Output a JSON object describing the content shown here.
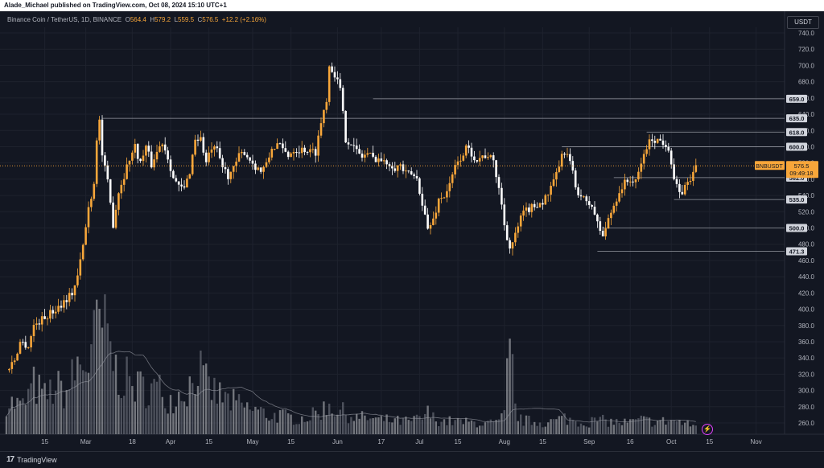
{
  "header": {
    "publisher": "Alade_Michael published on TradingView.com, Oct 08, 2024 15:10 UTC+1"
  },
  "legend": {
    "symbol": "Binance Coin / TetherUS, 1D, BINANCE",
    "open_label": "O",
    "open": "564.4",
    "high_label": "H",
    "high": "579.2",
    "low_label": "L",
    "low": "559.5",
    "close_label": "C",
    "close": "576.5",
    "change": "+12.2 (+2.16%)"
  },
  "currency": "USDT",
  "footer": {
    "brand": "TradingView",
    "logo": "17"
  },
  "colors": {
    "bull": "#f7a63a",
    "bear": "#ffffff",
    "bg": "#131722",
    "grid": "#1e222d",
    "price_tag": "#f7a63a"
  },
  "chart_data": {
    "type": "candlestick",
    "y_min": 250,
    "y_max": 740,
    "y_ticks": [
      260,
      280,
      300,
      320,
      340,
      360,
      380,
      400,
      420,
      440,
      460,
      480,
      500,
      520,
      540,
      560,
      580,
      600,
      620,
      640,
      660,
      680,
      700,
      720,
      740
    ],
    "x_labels": [
      {
        "label": "15",
        "day": 14
      },
      {
        "label": "Mar",
        "day": 29
      },
      {
        "label": "18",
        "day": 46
      },
      {
        "label": "Apr",
        "day": 60
      },
      {
        "label": "15",
        "day": 74
      },
      {
        "label": "May",
        "day": 90
      },
      {
        "label": "15",
        "day": 104
      },
      {
        "label": "Jun",
        "day": 121
      },
      {
        "label": "17",
        "day": 137
      },
      {
        "label": "Jul",
        "day": 151
      },
      {
        "label": "15",
        "day": 165
      },
      {
        "label": "Aug",
        "day": 182
      },
      {
        "label": "15",
        "day": 196
      },
      {
        "label": "Sep",
        "day": 213
      },
      {
        "label": "16",
        "day": 228
      },
      {
        "label": "Oct",
        "day": 243
      },
      {
        "label": "15",
        "day": 257
      },
      {
        "label": "Nov",
        "day": 274
      }
    ],
    "levels": [
      {
        "price": 659.0,
        "label": "659.0",
        "from_day": 134
      },
      {
        "price": 635.0,
        "label": "635.0",
        "from_day": 35
      },
      {
        "price": 618.0,
        "label": "618.0",
        "from_day": 234
      },
      {
        "price": 600.0,
        "label": "600.0",
        "from_day": 203
      },
      {
        "price": 562.0,
        "label": "562.0",
        "from_day": 222
      },
      {
        "price": 535.0,
        "label": "535.0",
        "from_day": 244
      },
      {
        "price": 500.0,
        "label": "500.0",
        "from_day": 218
      },
      {
        "price": 471.3,
        "label": "471.3",
        "from_day": 216
      }
    ],
    "last_price": {
      "symbol": "BNBUSDT",
      "price": 576.5,
      "label": "576.5",
      "countdown": "09:49:18"
    },
    "anchors": [
      [
        0,
        325
      ],
      [
        3,
        338
      ],
      [
        5,
        360
      ],
      [
        8,
        355
      ],
      [
        10,
        380
      ],
      [
        14,
        390
      ],
      [
        18,
        400
      ],
      [
        21,
        410
      ],
      [
        24,
        420
      ],
      [
        26,
        440
      ],
      [
        28,
        478
      ],
      [
        30,
        525
      ],
      [
        32,
        555
      ],
      [
        33,
        612
      ],
      [
        34,
        632
      ],
      [
        35,
        590
      ],
      [
        37,
        555
      ],
      [
        39,
        505
      ],
      [
        41,
        545
      ],
      [
        43,
        565
      ],
      [
        45,
        586
      ],
      [
        47,
        600
      ],
      [
        49,
        580
      ],
      [
        51,
        600
      ],
      [
        53,
        578
      ],
      [
        55,
        594
      ],
      [
        57,
        606
      ],
      [
        59,
        588
      ],
      [
        61,
        562
      ],
      [
        63,
        550
      ],
      [
        65,
        548
      ],
      [
        67,
        570
      ],
      [
        69,
        610
      ],
      [
        71,
        610
      ],
      [
        73,
        580
      ],
      [
        75,
        598
      ],
      [
        77,
        594
      ],
      [
        79,
        575
      ],
      [
        81,
        565
      ],
      [
        83,
        572
      ],
      [
        85,
        588
      ],
      [
        87,
        594
      ],
      [
        89,
        584
      ],
      [
        91,
        576
      ],
      [
        93,
        570
      ],
      [
        95,
        577
      ],
      [
        97,
        598
      ],
      [
        99,
        603
      ],
      [
        101,
        596
      ],
      [
        103,
        590
      ],
      [
        105,
        597
      ],
      [
        107,
        596
      ],
      [
        109,
        597
      ],
      [
        111,
        594
      ],
      [
        113,
        594
      ],
      [
        115,
        630
      ],
      [
        117,
        660
      ],
      [
        118,
        700
      ],
      [
        120,
        690
      ],
      [
        122,
        670
      ],
      [
        124,
        610
      ],
      [
        126,
        605
      ],
      [
        128,
        594
      ],
      [
        130,
        588
      ],
      [
        132,
        592
      ],
      [
        134,
        586
      ],
      [
        136,
        586
      ],
      [
        138,
        580
      ],
      [
        140,
        580
      ],
      [
        142,
        575
      ],
      [
        144,
        577
      ],
      [
        146,
        566
      ],
      [
        148,
        566
      ],
      [
        150,
        560
      ],
      [
        152,
        532
      ],
      [
        154,
        498
      ],
      [
        156,
        510
      ],
      [
        158,
        535
      ],
      [
        160,
        540
      ],
      [
        162,
        552
      ],
      [
        164,
        575
      ],
      [
        166,
        586
      ],
      [
        168,
        598
      ],
      [
        170,
        592
      ],
      [
        172,
        585
      ],
      [
        174,
        588
      ],
      [
        176,
        590
      ],
      [
        178,
        580
      ],
      [
        180,
        550
      ],
      [
        182,
        505
      ],
      [
        184,
        475
      ],
      [
        186,
        490
      ],
      [
        188,
        512
      ],
      [
        190,
        522
      ],
      [
        192,
        525
      ],
      [
        194,
        530
      ],
      [
        196,
        532
      ],
      [
        198,
        542
      ],
      [
        200,
        555
      ],
      [
        202,
        578
      ],
      [
        204,
        595
      ],
      [
        206,
        582
      ],
      [
        208,
        550
      ],
      [
        210,
        540
      ],
      [
        212,
        530
      ],
      [
        214,
        528
      ],
      [
        216,
        505
      ],
      [
        218,
        490
      ],
      [
        220,
        510
      ],
      [
        222,
        528
      ],
      [
        224,
        545
      ],
      [
        226,
        555
      ],
      [
        228,
        560
      ],
      [
        230,
        555
      ],
      [
        232,
        580
      ],
      [
        234,
        600
      ],
      [
        236,
        610
      ],
      [
        238,
        608
      ],
      [
        240,
        606
      ],
      [
        242,
        600
      ],
      [
        244,
        560
      ],
      [
        246,
        540
      ],
      [
        248,
        550
      ],
      [
        250,
        562
      ],
      [
        251,
        566
      ],
      [
        252,
        576.5
      ]
    ],
    "volume_anchors": [
      [
        0,
        28
      ],
      [
        6,
        24
      ],
      [
        10,
        42
      ],
      [
        14,
        32
      ],
      [
        18,
        40
      ],
      [
        22,
        36
      ],
      [
        26,
        58
      ],
      [
        30,
        62
      ],
      [
        32,
        78
      ],
      [
        34,
        96
      ],
      [
        36,
        86
      ],
      [
        38,
        74
      ],
      [
        40,
        54
      ],
      [
        44,
        46
      ],
      [
        48,
        40
      ],
      [
        52,
        40
      ],
      [
        56,
        38
      ],
      [
        60,
        30
      ],
      [
        64,
        36
      ],
      [
        68,
        44
      ],
      [
        70,
        62
      ],
      [
        72,
        44
      ],
      [
        76,
        36
      ],
      [
        80,
        30
      ],
      [
        84,
        26
      ],
      [
        88,
        22
      ],
      [
        92,
        20
      ],
      [
        96,
        16
      ],
      [
        100,
        16
      ],
      [
        104,
        14
      ],
      [
        108,
        14
      ],
      [
        112,
        16
      ],
      [
        116,
        22
      ],
      [
        118,
        26
      ],
      [
        120,
        22
      ],
      [
        124,
        18
      ],
      [
        128,
        14
      ],
      [
        132,
        14
      ],
      [
        136,
        12
      ],
      [
        140,
        12
      ],
      [
        144,
        11
      ],
      [
        148,
        11
      ],
      [
        152,
        14
      ],
      [
        154,
        18
      ],
      [
        156,
        14
      ],
      [
        160,
        11
      ],
      [
        164,
        11
      ],
      [
        168,
        10
      ],
      [
        172,
        10
      ],
      [
        176,
        9
      ],
      [
        180,
        10
      ],
      [
        182,
        16
      ],
      [
        184,
        82
      ],
      [
        186,
        22
      ],
      [
        188,
        12
      ],
      [
        192,
        11
      ],
      [
        196,
        10
      ],
      [
        200,
        11
      ],
      [
        204,
        14
      ],
      [
        208,
        11
      ],
      [
        212,
        10
      ],
      [
        216,
        12
      ],
      [
        220,
        11
      ],
      [
        224,
        10
      ],
      [
        228,
        10
      ],
      [
        232,
        12
      ],
      [
        236,
        11
      ],
      [
        240,
        11
      ],
      [
        244,
        12
      ],
      [
        248,
        9
      ],
      [
        252,
        7
      ]
    ]
  }
}
